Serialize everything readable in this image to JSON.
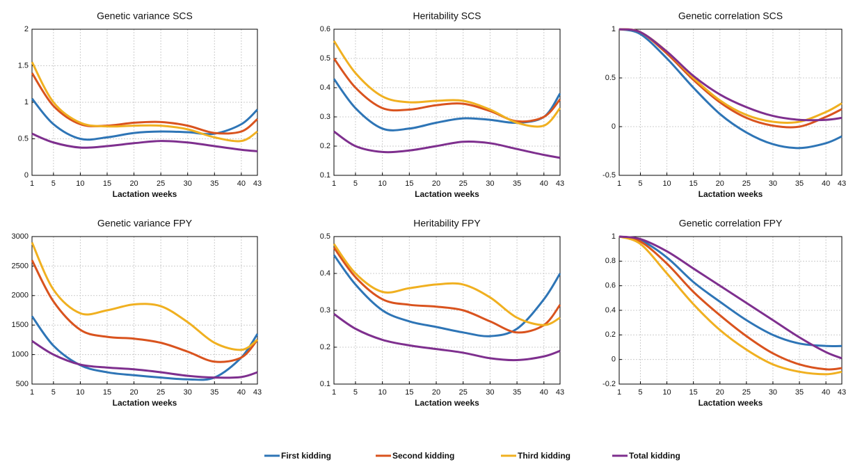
{
  "chart_data": [
    {
      "type": "line",
      "title": "Genetic variance SCS",
      "x_label": "Lactation weeks",
      "x": [
        1,
        5,
        10,
        15,
        20,
        25,
        30,
        35,
        40,
        43
      ],
      "xlim": [
        1,
        43
      ],
      "xticks": [
        1,
        5,
        10,
        15,
        20,
        25,
        30,
        35,
        40,
        43
      ],
      "ylim": [
        0,
        2
      ],
      "yticks": [
        0,
        0.5,
        1,
        1.5,
        2
      ],
      "grid": true,
      "series": [
        {
          "values": [
            1.05,
            0.7,
            0.5,
            0.52,
            0.58,
            0.6,
            0.59,
            0.57,
            0.7,
            0.9
          ]
        },
        {
          "values": [
            1.4,
            0.95,
            0.7,
            0.68,
            0.72,
            0.73,
            0.68,
            0.58,
            0.6,
            0.77
          ]
        },
        {
          "values": [
            1.55,
            1.0,
            0.72,
            0.67,
            0.68,
            0.68,
            0.63,
            0.52,
            0.47,
            0.6
          ]
        },
        {
          "values": [
            0.57,
            0.45,
            0.38,
            0.4,
            0.44,
            0.47,
            0.45,
            0.4,
            0.35,
            0.33
          ]
        }
      ]
    },
    {
      "type": "line",
      "title": "Heritability SCS",
      "x_label": "Lactation weeks",
      "x": [
        1,
        5,
        10,
        15,
        20,
        25,
        30,
        35,
        40,
        43
      ],
      "xlim": [
        1,
        43
      ],
      "xticks": [
        1,
        5,
        10,
        15,
        20,
        25,
        30,
        35,
        40,
        43
      ],
      "ylim": [
        0.1,
        0.6
      ],
      "yticks": [
        0.1,
        0.2,
        0.3,
        0.4,
        0.5,
        0.6
      ],
      "grid": true,
      "series": [
        {
          "values": [
            0.43,
            0.33,
            0.26,
            0.26,
            0.28,
            0.295,
            0.29,
            0.28,
            0.3,
            0.38
          ]
        },
        {
          "values": [
            0.5,
            0.4,
            0.33,
            0.325,
            0.34,
            0.345,
            0.32,
            0.285,
            0.3,
            0.36
          ]
        },
        {
          "values": [
            0.56,
            0.45,
            0.37,
            0.35,
            0.355,
            0.355,
            0.325,
            0.28,
            0.27,
            0.33
          ]
        },
        {
          "values": [
            0.25,
            0.2,
            0.18,
            0.185,
            0.2,
            0.215,
            0.21,
            0.19,
            0.17,
            0.16
          ]
        }
      ]
    },
    {
      "type": "line",
      "title": "Genetic correlation SCS",
      "x_label": "Lactation weeks",
      "x": [
        1,
        5,
        10,
        15,
        20,
        25,
        30,
        35,
        40,
        43
      ],
      "xlim": [
        1,
        43
      ],
      "xticks": [
        1,
        5,
        10,
        15,
        20,
        25,
        30,
        35,
        40,
        43
      ],
      "ylim": [
        -0.5,
        1
      ],
      "yticks": [
        -0.5,
        0,
        0.5,
        1
      ],
      "grid": true,
      "series": [
        {
          "values": [
            1,
            0.95,
            0.7,
            0.4,
            0.13,
            -0.06,
            -0.18,
            -0.22,
            -0.17,
            -0.1
          ]
        },
        {
          "values": [
            1,
            0.97,
            0.75,
            0.48,
            0.25,
            0.09,
            0.01,
            0,
            0.1,
            0.18
          ]
        },
        {
          "values": [
            1,
            0.97,
            0.77,
            0.5,
            0.27,
            0.12,
            0.05,
            0.05,
            0.15,
            0.24
          ]
        },
        {
          "values": [
            1,
            0.97,
            0.77,
            0.52,
            0.33,
            0.2,
            0.11,
            0.07,
            0.07,
            0.09
          ]
        }
      ]
    },
    {
      "type": "line",
      "title": "Genetic variance FPY",
      "x_label": "Lactation weeks",
      "x": [
        1,
        5,
        10,
        15,
        20,
        25,
        30,
        35,
        40,
        43
      ],
      "xlim": [
        1,
        43
      ],
      "xticks": [
        1,
        5,
        10,
        15,
        20,
        25,
        30,
        35,
        40,
        43
      ],
      "ylim": [
        500,
        3000
      ],
      "yticks": [
        500,
        1000,
        1500,
        2000,
        2500,
        3000
      ],
      "grid": true,
      "series": [
        {
          "values": [
            1650,
            1150,
            820,
            700,
            650,
            610,
            580,
            610,
            950,
            1350
          ]
        },
        {
          "values": [
            2600,
            1900,
            1420,
            1300,
            1270,
            1200,
            1050,
            880,
            950,
            1250
          ]
        },
        {
          "values": [
            2900,
            2100,
            1700,
            1750,
            1850,
            1820,
            1550,
            1200,
            1080,
            1250
          ]
        },
        {
          "values": [
            1230,
            1000,
            830,
            780,
            750,
            700,
            640,
            610,
            620,
            700
          ]
        }
      ]
    },
    {
      "type": "line",
      "title": "Heritability FPY",
      "x_label": "Lactation weeks",
      "x": [
        1,
        5,
        10,
        15,
        20,
        25,
        30,
        35,
        40,
        43
      ],
      "xlim": [
        1,
        43
      ],
      "xticks": [
        1,
        5,
        10,
        15,
        20,
        25,
        30,
        35,
        40,
        43
      ],
      "ylim": [
        0.1,
        0.5
      ],
      "yticks": [
        0.1,
        0.2,
        0.3,
        0.4,
        0.5
      ],
      "grid": true,
      "series": [
        {
          "values": [
            0.45,
            0.37,
            0.3,
            0.27,
            0.255,
            0.24,
            0.23,
            0.25,
            0.33,
            0.4
          ]
        },
        {
          "values": [
            0.47,
            0.39,
            0.33,
            0.315,
            0.31,
            0.3,
            0.27,
            0.24,
            0.26,
            0.315
          ]
        },
        {
          "values": [
            0.48,
            0.4,
            0.35,
            0.36,
            0.37,
            0.37,
            0.335,
            0.28,
            0.26,
            0.28
          ]
        },
        {
          "values": [
            0.29,
            0.25,
            0.22,
            0.205,
            0.195,
            0.185,
            0.17,
            0.165,
            0.175,
            0.19
          ]
        }
      ]
    },
    {
      "type": "line",
      "title": "Genetic correlation FPY",
      "x_label": "Lactation weeks",
      "x": [
        1,
        5,
        10,
        15,
        20,
        25,
        30,
        35,
        40,
        43
      ],
      "xlim": [
        1,
        43
      ],
      "xticks": [
        1,
        5,
        10,
        15,
        20,
        25,
        30,
        35,
        40,
        43
      ],
      "ylim": [
        -0.2,
        1
      ],
      "yticks": [
        -0.2,
        0,
        0.2,
        0.4,
        0.6,
        0.8,
        1
      ],
      "grid": true,
      "series": [
        {
          "values": [
            1,
            0.97,
            0.83,
            0.63,
            0.47,
            0.32,
            0.2,
            0.13,
            0.11,
            0.11
          ]
        },
        {
          "values": [
            1,
            0.96,
            0.78,
            0.55,
            0.36,
            0.19,
            0.05,
            -0.04,
            -0.08,
            -0.07
          ]
        },
        {
          "values": [
            1,
            0.94,
            0.7,
            0.45,
            0.24,
            0.08,
            -0.04,
            -0.1,
            -0.12,
            -0.1
          ]
        },
        {
          "values": [
            1,
            0.98,
            0.88,
            0.74,
            0.6,
            0.46,
            0.32,
            0.18,
            0.06,
            0.01
          ]
        }
      ]
    }
  ],
  "legend": [
    {
      "name": "First kidding",
      "color": "#2e75b6"
    },
    {
      "name": "Second kidding",
      "color": "#d9531e"
    },
    {
      "name": "Third kidding",
      "color": "#f0b020"
    },
    {
      "name": "Total kidding",
      "color": "#7e2f8e"
    }
  ]
}
